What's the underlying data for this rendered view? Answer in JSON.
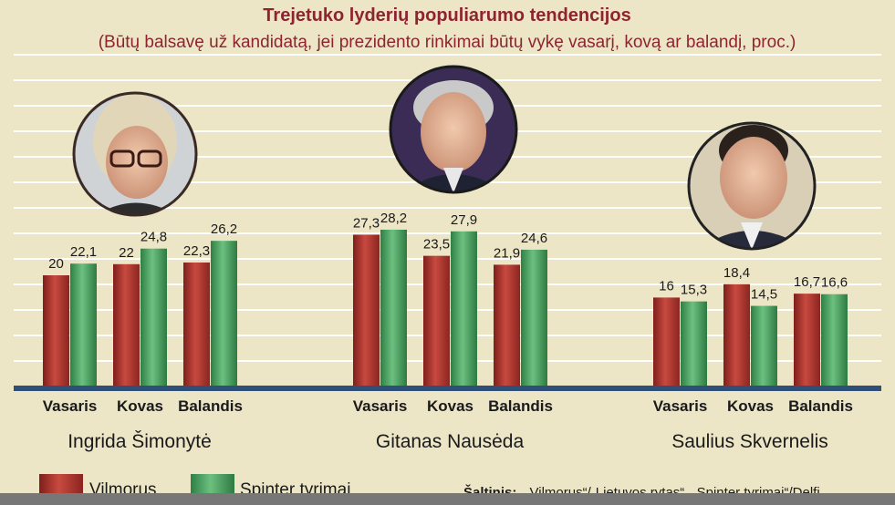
{
  "chart_data": {
    "type": "bar",
    "title": "Trejetuko lyderių populiarumo tendencijos",
    "subtitle": "(Būtų balsavę už kandidatą, jei prezidento rinkimai būtų vykę vasarį, kovą ar balandį, proc.)",
    "groups": [
      {
        "candidate": "Ingrida Šimonytė",
        "months": [
          "Vasaris",
          "Kovas",
          "Balandis"
        ],
        "labels": {
          "Vilmorus": [
            "20",
            "22",
            "22,3"
          ],
          "Spinter tyrimai": [
            "22,1",
            "24,8",
            "26,2"
          ]
        }
      },
      {
        "candidate": "Gitanas Nausėda",
        "months": [
          "Vasaris",
          "Kovas",
          "Balandis"
        ],
        "labels": {
          "Vilmorus": [
            "27,3",
            "23,5",
            "21,9"
          ],
          "Spinter tyrimai": [
            "28,2",
            "27,9",
            "24,6"
          ]
        }
      },
      {
        "candidate": "Saulius Skvernelis",
        "months": [
          "Vasaris",
          "Kovas",
          "Balandis"
        ],
        "labels": {
          "Vilmorus": [
            "16",
            "18,4",
            "16,7"
          ],
          "Spinter tyrimai": [
            "15,3",
            "14,5",
            "16,6"
          ]
        }
      }
    ],
    "series": [
      {
        "name": "Vilmorus",
        "color": "#b03a33",
        "values": [
          [
            20,
            22,
            22.3
          ],
          [
            27.3,
            23.5,
            21.9
          ],
          [
            16,
            18.4,
            16.7
          ]
        ]
      },
      {
        "name": "Spinter tyrimai",
        "color": "#3f9a5a",
        "values": [
          [
            22.1,
            24.8,
            26.2
          ],
          [
            28.2,
            27.9,
            24.6
          ],
          [
            15.3,
            14.5,
            16.6
          ]
        ]
      }
    ],
    "grid": true,
    "legend_position": "bottom-left",
    "source_label": "Šaltinis:",
    "source_text": "„Vilmorus“/„Lietuvos rytas“, „Spinter tyrimai“/Delfi"
  }
}
